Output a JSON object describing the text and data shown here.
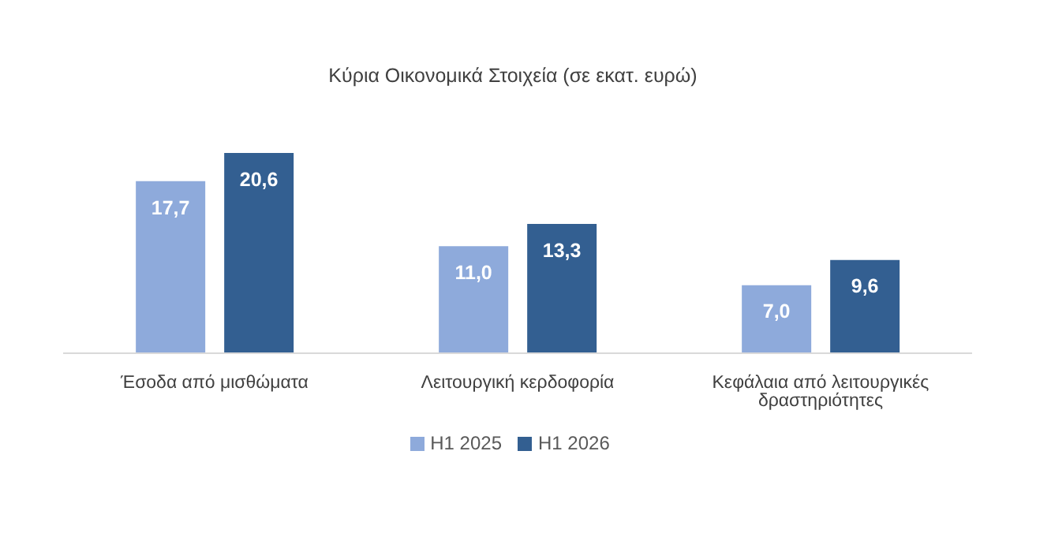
{
  "chart_data": {
    "type": "bar",
    "title": "Κύρια Οικονομικά Στοιχεία (σε εκατ. ευρώ)",
    "categories": [
      "Έσοδα από μισθώματα",
      "Λειτουργική κερδοφορία",
      "Κεφάλαια από λειτουργικές δραστηριότητες"
    ],
    "series": [
      {
        "name": "H1 2025",
        "color": "#8eaadb",
        "values": [
          17.7,
          11.0,
          7.0
        ],
        "value_labels": [
          "17,7",
          "11,0",
          "7,0"
        ]
      },
      {
        "name": "H1 2026",
        "color": "#335f91",
        "values": [
          20.6,
          13.3,
          9.6
        ],
        "value_labels": [
          "20,6",
          "13,3",
          "9,6"
        ]
      }
    ],
    "legend": "bottom",
    "grid": false
  }
}
